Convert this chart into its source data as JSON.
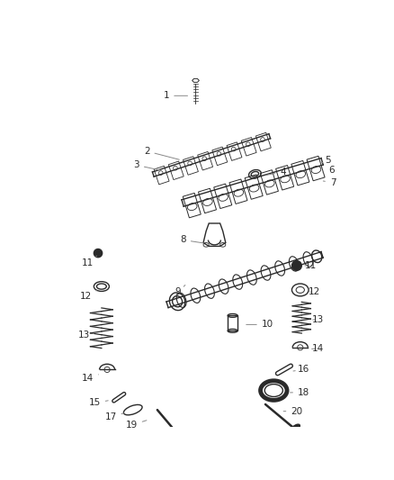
{
  "bg_color": "#ffffff",
  "line_color": "#2a2a2a",
  "gray": "#888888",
  "darkgray": "#555555",
  "figsize": [
    4.38,
    5.33
  ],
  "dpi": 100
}
